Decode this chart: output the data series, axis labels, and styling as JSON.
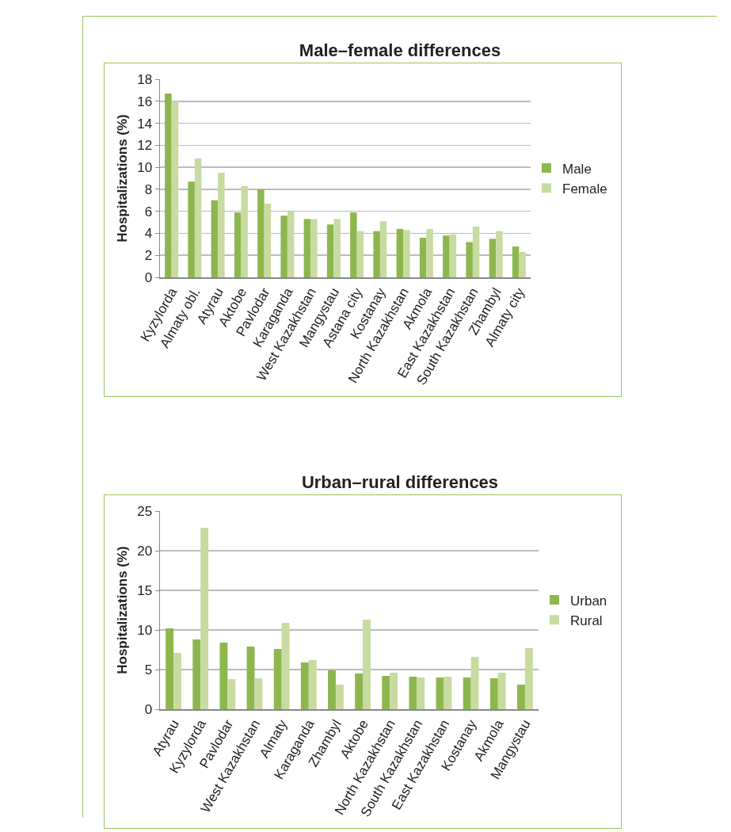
{
  "chart_data": [
    {
      "type": "bar",
      "title": "Male–female differences",
      "ylabel": "Hospitalizations (%)",
      "categories": [
        "Kyzylorda",
        "Almaty obl.",
        "Atyrau",
        "Aktobe",
        "Pavlodar",
        "Karaganda",
        "West Kazakhstan",
        "Mangystau",
        "Astana city",
        "Kostanay",
        "North Kazakhstan",
        "Akmola",
        "East Kazakhstan",
        "South Kazakhstan",
        "Zhambyl",
        "Almaty city"
      ],
      "series": [
        {
          "name": "Male",
          "color": "#8db64e",
          "values": [
            16.7,
            8.7,
            7.0,
            5.9,
            8.0,
            5.6,
            5.3,
            4.8,
            5.9,
            4.2,
            4.4,
            3.6,
            3.8,
            3.2,
            3.5,
            2.8
          ]
        },
        {
          "name": "Female",
          "color": "#c8dba0",
          "values": [
            16.0,
            10.8,
            9.5,
            8.3,
            6.7,
            6.0,
            5.3,
            5.3,
            4.2,
            5.1,
            4.3,
            4.4,
            3.9,
            4.6,
            4.2,
            2.3
          ]
        }
      ],
      "ylim": [
        0,
        18
      ],
      "yticks": [
        0,
        2,
        4,
        6,
        8,
        10,
        12,
        14,
        16,
        18
      ],
      "grid": "y",
      "legend": "right"
    },
    {
      "type": "bar",
      "title": "Urban–rural differences",
      "ylabel": "Hospitalizations (%)",
      "categories": [
        "Atyrau",
        "Kyzylorda",
        "Pavlodar",
        "West Kazakhstan",
        "Almaty",
        "Karaganda",
        "Zhambyl",
        "Aktobe",
        "North Kazakhstan",
        "South Kazakhstan",
        "East Kazakhstan",
        "Kostanay",
        "Akmola",
        "Mangystau"
      ],
      "series": [
        {
          "name": "Urban",
          "color": "#8db64e",
          "values": [
            10.2,
            8.8,
            8.4,
            7.9,
            7.6,
            5.9,
            4.9,
            4.5,
            4.2,
            4.1,
            4.0,
            4.0,
            3.9,
            3.1
          ]
        },
        {
          "name": "Rural",
          "color": "#c8dba0",
          "values": [
            7.1,
            22.9,
            3.8,
            3.9,
            10.9,
            6.2,
            3.1,
            11.3,
            4.6,
            4.0,
            4.1,
            6.6,
            4.6,
            7.7
          ]
        }
      ],
      "ylim": [
        0,
        25
      ],
      "yticks": [
        0,
        5,
        10,
        15,
        20,
        25
      ],
      "grid": "y",
      "legend": "right"
    }
  ]
}
